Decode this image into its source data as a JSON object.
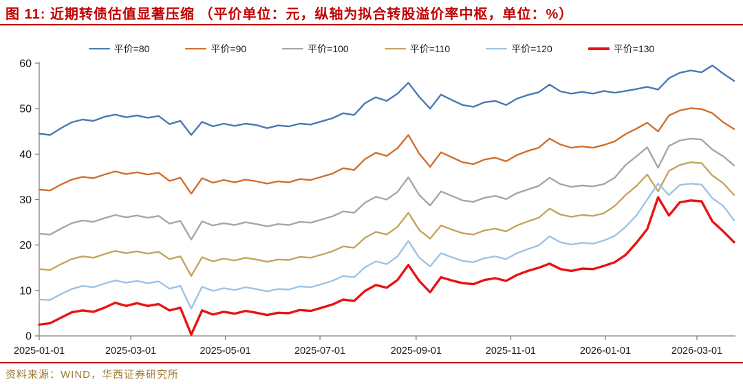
{
  "page": {
    "title": "图 11: 近期转债估值显著压缩 （平价单位：元，纵轴为拟合转股溢价率中枢，单位：%）",
    "source": "资料来源：WIND，华西证券研究所"
  },
  "colors": {
    "title_red": "#c00000",
    "rule_red": "#c00000",
    "source_gold": "#9e7c30",
    "axis": "#808080",
    "tick_label": "#1a1a1a"
  },
  "chart_data": {
    "type": "line",
    "title": "近期转债估值显著压缩（拟合转股溢价率中枢，%）",
    "x_start_date": "2025-01-01",
    "x_interval_days": 7,
    "x_ticks": [
      {
        "label": "2025-01-01",
        "day": 0
      },
      {
        "label": "2025-03-01",
        "day": 59
      },
      {
        "label": "2025-05-01",
        "day": 120
      },
      {
        "label": "2025-07-01",
        "day": 181
      },
      {
        "label": "2025-09-01",
        "day": 243
      },
      {
        "label": "2025-11-01",
        "day": 304
      },
      {
        "label": "2026-01-01",
        "day": 365
      },
      {
        "label": "2026-03-01",
        "day": 424
      }
    ],
    "ylim": [
      0,
      60
    ],
    "y_ticks": [
      0,
      10,
      20,
      30,
      40,
      50,
      60
    ],
    "grid": false,
    "legend_position": "top",
    "series": [
      {
        "name": "平价=80",
        "color": "#4879b4",
        "line_width": 2.4,
        "values": [
          44.5,
          44.2,
          45.7,
          47.0,
          47.6,
          47.3,
          48.2,
          48.7,
          48.1,
          48.5,
          48.0,
          48.4,
          46.6,
          47.3,
          44.2,
          47.1,
          46.1,
          46.7,
          46.2,
          46.7,
          46.4,
          45.7,
          46.3,
          46.1,
          46.7,
          46.5,
          47.2,
          47.9,
          49.0,
          48.6,
          51.2,
          52.5,
          51.7,
          53.3,
          55.7,
          52.6,
          50.0,
          53.1,
          51.9,
          50.8,
          50.4,
          51.4,
          51.7,
          50.8,
          52.2,
          53.0,
          53.6,
          55.3,
          53.8,
          53.3,
          53.7,
          53.3,
          53.9,
          53.5,
          53.9,
          54.3,
          54.8,
          54.2,
          56.7,
          57.9,
          58.4,
          58.0,
          59.5,
          57.7,
          56.1
        ]
      },
      {
        "name": "平价=90",
        "color": "#d06f2d",
        "line_width": 2.4,
        "values": [
          32.2,
          32.0,
          33.3,
          34.4,
          35.0,
          34.7,
          35.5,
          36.2,
          35.6,
          36.0,
          35.5,
          35.9,
          34.1,
          34.8,
          31.3,
          34.7,
          33.7,
          34.3,
          33.8,
          34.4,
          34.0,
          33.5,
          34.0,
          33.8,
          34.5,
          34.3,
          35.0,
          35.7,
          36.9,
          36.5,
          38.9,
          40.3,
          39.6,
          41.3,
          44.2,
          40.1,
          37.2,
          40.4,
          39.3,
          38.2,
          37.8,
          38.8,
          39.2,
          38.4,
          39.8,
          40.7,
          41.4,
          43.4,
          42.1,
          41.4,
          41.7,
          41.4,
          42.0,
          42.8,
          44.4,
          45.6,
          46.9,
          45.0,
          48.5,
          49.6,
          50.1,
          49.9,
          49.0,
          47.0,
          45.5
        ]
      },
      {
        "name": "平价=100",
        "color": "#a6a6a6",
        "line_width": 2.4,
        "values": [
          22.5,
          22.3,
          23.6,
          24.8,
          25.4,
          25.1,
          25.9,
          26.6,
          26.1,
          26.5,
          26.0,
          26.4,
          24.7,
          25.3,
          21.2,
          25.2,
          24.3,
          24.8,
          24.4,
          25.0,
          24.6,
          24.1,
          24.6,
          24.4,
          25.1,
          24.9,
          25.6,
          26.3,
          27.4,
          27.1,
          29.3,
          30.6,
          30.0,
          31.7,
          34.9,
          31.0,
          28.7,
          31.8,
          30.8,
          29.8,
          29.5,
          30.4,
          30.8,
          30.1,
          31.4,
          32.2,
          33.0,
          34.8,
          33.4,
          32.8,
          33.1,
          32.9,
          33.4,
          34.8,
          37.6,
          39.5,
          41.5,
          37.0,
          41.8,
          43.0,
          43.4,
          43.2,
          41.0,
          39.5,
          37.5
        ]
      },
      {
        "name": "平价=110",
        "color": "#c5a45c",
        "line_width": 2.4,
        "values": [
          14.7,
          14.5,
          15.8,
          16.9,
          17.5,
          17.2,
          18.0,
          18.7,
          18.2,
          18.6,
          18.1,
          18.5,
          16.9,
          17.5,
          13.2,
          17.3,
          16.4,
          17.0,
          16.6,
          17.2,
          16.8,
          16.3,
          16.8,
          16.7,
          17.4,
          17.2,
          17.9,
          18.6,
          19.7,
          19.4,
          21.6,
          22.9,
          22.3,
          24.0,
          27.1,
          23.3,
          21.4,
          24.3,
          23.4,
          22.6,
          22.3,
          23.2,
          23.6,
          23.0,
          24.3,
          25.2,
          26.0,
          28.0,
          26.7,
          26.2,
          26.6,
          26.4,
          27.0,
          28.6,
          31.0,
          33.0,
          35.5,
          31.8,
          36.3,
          37.6,
          38.2,
          38.0,
          35.3,
          33.6,
          31.0
        ]
      },
      {
        "name": "平价=120",
        "color": "#9dc3e6",
        "line_width": 2.4,
        "values": [
          8.0,
          7.9,
          9.2,
          10.3,
          11.0,
          10.7,
          11.5,
          12.2,
          11.7,
          12.1,
          11.6,
          12.0,
          10.4,
          11.0,
          6.0,
          10.8,
          9.9,
          10.5,
          10.1,
          10.7,
          10.3,
          9.8,
          10.3,
          10.2,
          10.9,
          10.7,
          11.4,
          12.1,
          13.2,
          12.9,
          15.1,
          16.4,
          15.8,
          17.5,
          20.9,
          17.2,
          15.3,
          18.2,
          17.3,
          16.5,
          16.2,
          17.1,
          17.5,
          16.9,
          18.2,
          19.1,
          19.9,
          21.9,
          20.6,
          20.1,
          20.5,
          20.3,
          21.0,
          22.0,
          24.0,
          26.5,
          30.0,
          33.5,
          31.0,
          33.2,
          33.5,
          33.3,
          30.3,
          28.6,
          25.4
        ]
      },
      {
        "name": "平价=130",
        "color": "#e81313",
        "line_width": 3.4,
        "values": [
          2.5,
          2.8,
          4.0,
          5.2,
          5.6,
          5.3,
          6.2,
          7.3,
          6.6,
          7.2,
          6.6,
          7.0,
          5.6,
          6.2,
          0.3,
          5.6,
          4.7,
          5.3,
          4.9,
          5.5,
          5.1,
          4.6,
          5.1,
          5.0,
          5.7,
          5.5,
          6.2,
          6.9,
          8.0,
          7.7,
          9.9,
          11.2,
          10.6,
          12.3,
          15.6,
          12.1,
          9.6,
          12.9,
          12.2,
          11.6,
          11.4,
          12.3,
          12.7,
          12.1,
          13.4,
          14.3,
          15.0,
          15.9,
          14.7,
          14.3,
          14.8,
          14.7,
          15.4,
          16.2,
          17.8,
          20.5,
          23.5,
          30.5,
          26.5,
          29.4,
          29.8,
          29.6,
          25.2,
          23.0,
          20.6
        ]
      }
    ]
  }
}
